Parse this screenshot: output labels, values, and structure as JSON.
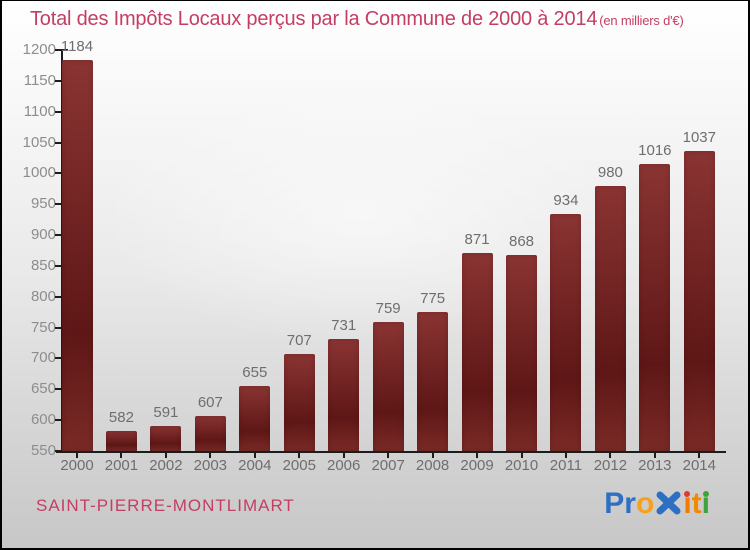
{
  "title": {
    "text": "Total des Impôts Locaux perçus par la Commune de 2000 à 2014",
    "unit": "(en milliers d'€)"
  },
  "chart_data": {
    "type": "bar",
    "title": "Total des Impôts Locaux perçus par la Commune de 2000 à 2014 (en milliers d'€)",
    "categories": [
      "2000",
      "2001",
      "2002",
      "2003",
      "2004",
      "2005",
      "2006",
      "2007",
      "2008",
      "2009",
      "2010",
      "2011",
      "2012",
      "2013",
      "2014"
    ],
    "values": [
      1184,
      582,
      591,
      607,
      655,
      707,
      731,
      759,
      775,
      871,
      868,
      934,
      980,
      1016,
      1037
    ],
    "xlabel": "",
    "ylabel": "",
    "ylim": [
      550,
      1200
    ],
    "yticks": [
      550,
      600,
      650,
      700,
      750,
      800,
      850,
      900,
      950,
      1000,
      1050,
      1100,
      1150,
      1200
    ],
    "grid": false,
    "legend": false,
    "value_labels": true,
    "bar_color_top": "#8a3433",
    "bar_color_mid": "#5e1716",
    "bar_color_bottom": "#7a2a26",
    "value_label_color": "#6e6e6e",
    "category_label_color": "#6e6e6e",
    "ytick_label_color": "#8d8d8d",
    "axis_line_color": "#1c1c1c"
  },
  "footer": {
    "commune": "SAINT-PIERRE-MONTLIMART",
    "logo": {
      "brand": "Proxiti",
      "letters": [
        {
          "ch": "P",
          "color": "#2d6fc2"
        },
        {
          "ch": "r",
          "color": "#2d6fc2"
        },
        {
          "ch": "o",
          "color": "#f9a01b"
        },
        {
          "ch": "x",
          "color": "#2d6fc2",
          "style": "x-mark"
        },
        {
          "ch": "i",
          "color": "#f07d00",
          "dot": "#e0392d"
        },
        {
          "ch": "t",
          "color": "#f28a00"
        },
        {
          "ch": "i",
          "color": "#3fa33c",
          "dot": "#3fa33c"
        }
      ]
    }
  },
  "colors": {
    "accent": "#c43e63",
    "background_top": "#ffffff",
    "background_bottom": "#c7c7c7"
  }
}
